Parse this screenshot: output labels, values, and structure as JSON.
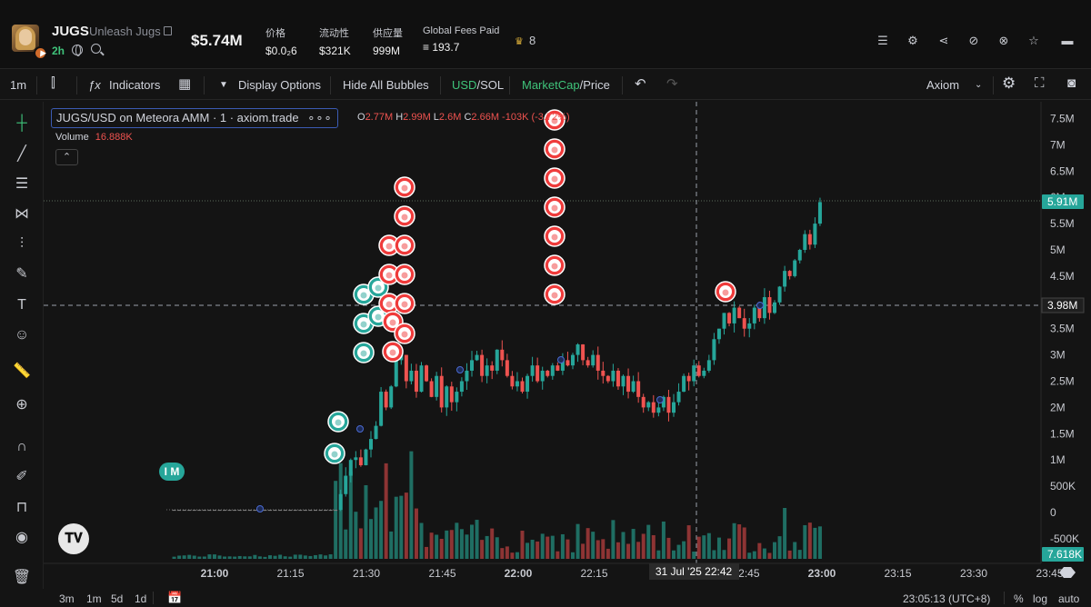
{
  "token": {
    "ticker": "JUGS",
    "name": "Unleash Jugs",
    "age": "2h",
    "market_cap": "$5.74M",
    "holders_rank": "8"
  },
  "stats": [
    {
      "label": "价格",
      "value": "$0.0₂6"
    },
    {
      "label": "流动性",
      "value": "$321K"
    },
    {
      "label": "供应量",
      "value": "999M"
    },
    {
      "label": "Global Fees Paid",
      "value": "≡ 193.7"
    }
  ],
  "header_icons": [
    "list-icon",
    "settings-icon",
    "share-icon",
    "eye-off-icon",
    "hide-icon",
    "star-icon",
    "layout-icon"
  ],
  "toolbar": {
    "interval": "1m",
    "indicators": "Indicators",
    "display_options": "Display Options",
    "hide_bubbles": "Hide All Bubbles",
    "usd": "USD",
    "sol": "SOL",
    "marketcap": "MarketCap",
    "price": "Price",
    "source": "Axiom"
  },
  "legend": {
    "title": "JUGS/USD on Meteora AMM · 1 · axiom.trade",
    "o_label": "O",
    "o": "2.77M",
    "h_label": "H",
    "h": "2.99M",
    "l_label": "L",
    "l": "2.6M",
    "c_label": "C",
    "c": "2.66M",
    "change": "-103K (-3.72%)",
    "volume_label": "Volume",
    "volume": "16.888K"
  },
  "chart_data": {
    "type": "candlestick",
    "y_ticks": [
      "7.5M",
      "7M",
      "6.5M",
      "6M",
      "5.5M",
      "5M",
      "4.5M",
      "4M",
      "3.5M",
      "3M",
      "2.5M",
      "2M",
      "1.5M",
      "1M",
      "500K",
      "0",
      "-500K"
    ],
    "x_ticks": [
      "21:00",
      "21:15",
      "21:30",
      "21:45",
      "22:00",
      "22:15",
      "22:30",
      "22:45",
      "23:00",
      "23:15",
      "23:30",
      "23:45"
    ],
    "last_price_label": "5.91M",
    "crosshair_price_label": "3.98M",
    "crosshair_time_label": "31 Jul '25   22:42",
    "volume_label": "7.618K",
    "color_up": "#26a69a",
    "color_down": "#ef5350"
  },
  "bottom": {
    "ranges": [
      "3m",
      "1m",
      "5d",
      "1d"
    ],
    "clock": "23:05:13 (UTC+8)",
    "pct": "%",
    "log": "log",
    "auto": "auto"
  }
}
